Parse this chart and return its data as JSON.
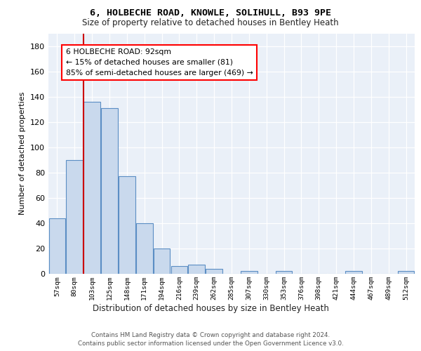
{
  "title1": "6, HOLBECHE ROAD, KNOWLE, SOLIHULL, B93 9PE",
  "title2": "Size of property relative to detached houses in Bentley Heath",
  "xlabel": "Distribution of detached houses by size in Bentley Heath",
  "ylabel": "Number of detached properties",
  "bar_labels": [
    "57sqm",
    "80sqm",
    "103sqm",
    "125sqm",
    "148sqm",
    "171sqm",
    "194sqm",
    "216sqm",
    "239sqm",
    "262sqm",
    "285sqm",
    "307sqm",
    "330sqm",
    "353sqm",
    "376sqm",
    "398sqm",
    "421sqm",
    "444sqm",
    "467sqm",
    "489sqm",
    "512sqm"
  ],
  "bar_values": [
    44,
    90,
    136,
    131,
    77,
    40,
    20,
    6,
    7,
    4,
    0,
    2,
    0,
    2,
    0,
    0,
    0,
    2,
    0,
    0,
    2
  ],
  "bar_color": "#c9d9ed",
  "bar_edge_color": "#5b8ec4",
  "annotation_text": "6 HOLBECHE ROAD: 92sqm\n← 15% of detached houses are smaller (81)\n85% of semi-detached houses are larger (469) →",
  "red_line_color": "#cc0000",
  "ylim": [
    0,
    190
  ],
  "yticks": [
    0,
    20,
    40,
    60,
    80,
    100,
    120,
    140,
    160,
    180
  ],
  "footer1": "Contains HM Land Registry data © Crown copyright and database right 2024.",
  "footer2": "Contains public sector information licensed under the Open Government Licence v3.0.",
  "plot_bg_color": "#eaf0f8"
}
